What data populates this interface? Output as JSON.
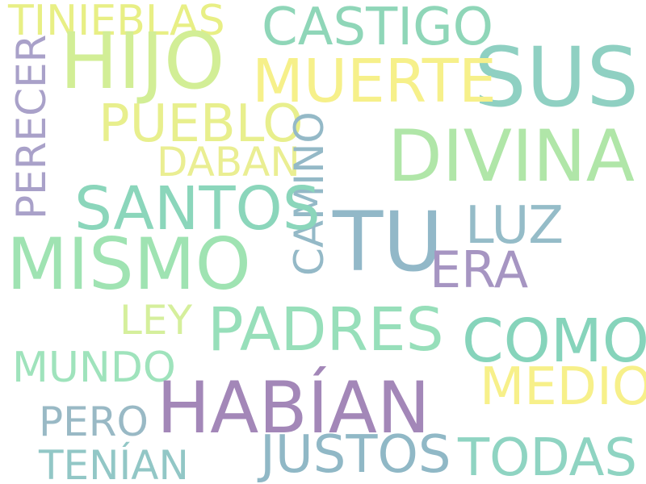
{
  "words": [
    {
      "text": "TINIEBLAS",
      "color": "#e8ef85"
    },
    {
      "text": "CASTIGO",
      "color": "#8fd6b8"
    },
    {
      "text": "HIJO",
      "color": "#d2ee96"
    },
    {
      "text": "SUS",
      "color": "#8fd0c2"
    },
    {
      "text": "MUERTE",
      "color": "#f6f08a"
    },
    {
      "text": "PERECER",
      "color": "#a9a1c9"
    },
    {
      "text": "PUEBLO",
      "color": "#e8ef8d"
    },
    {
      "text": "DIVINA",
      "color": "#b0e6a8"
    },
    {
      "text": "DABAN",
      "color": "#eaee92"
    },
    {
      "text": "CAMINO",
      "color": "#94b9c7"
    },
    {
      "text": "SANTOS",
      "color": "#8bd6bb"
    },
    {
      "text": "TU",
      "color": "#92b8c8"
    },
    {
      "text": "LUZ",
      "color": "#95bcc8"
    },
    {
      "text": "MISMO",
      "color": "#9fe3b2"
    },
    {
      "text": "ERA",
      "color": "#a695c2"
    },
    {
      "text": "LEY",
      "color": "#d5ef9c"
    },
    {
      "text": "PADRES",
      "color": "#97dfba"
    },
    {
      "text": "COMO",
      "color": "#86d4bb"
    },
    {
      "text": "MUNDO",
      "color": "#9fe3bc"
    },
    {
      "text": "MEDIO",
      "color": "#f7f08a"
    },
    {
      "text": "HABÍAN",
      "color": "#a387b8"
    },
    {
      "text": "PERO",
      "color": "#99b9c5"
    },
    {
      "text": "JUSTOS",
      "color": "#90b8c6"
    },
    {
      "text": "TODAS",
      "color": "#8fd4c2"
    },
    {
      "text": "TENÍAN",
      "color": "#92c7c6"
    }
  ]
}
